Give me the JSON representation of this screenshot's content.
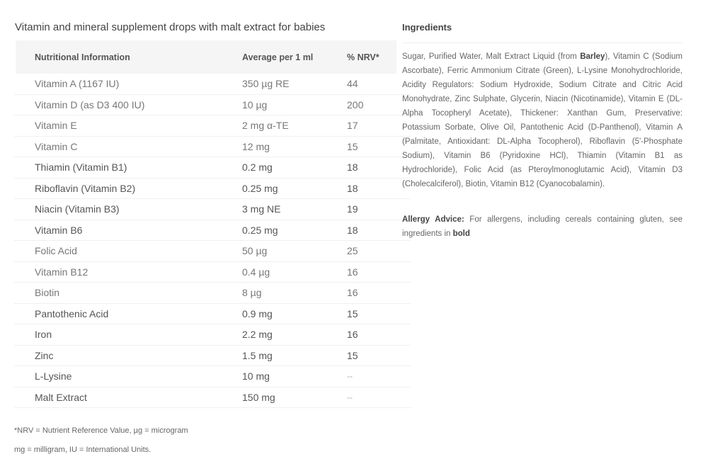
{
  "title": "Vitamin and mineral supplement drops with malt extract for babies",
  "table": {
    "headers": [
      "Nutritional Information",
      "Average per 1 ml",
      "% NRV*"
    ],
    "rows": [
      {
        "name": "Vitamin A (1167 IU)",
        "amount": "350 µg RE",
        "nrv": "44"
      },
      {
        "name": "Vitamin D (as D3 400 IU)",
        "amount": "10 µg",
        "nrv": "200"
      },
      {
        "name": "Vitamin E",
        "amount": "2 mg α-TE",
        "nrv": "17"
      },
      {
        "name": "Vitamin C",
        "amount": "12 mg",
        "nrv": "15"
      },
      {
        "name": "Thiamin (Vitamin B1)",
        "amount": "0.2 mg",
        "nrv": "18"
      },
      {
        "name": "Riboflavin (Vitamin B2)",
        "amount": "0.25 mg",
        "nrv": "18"
      },
      {
        "name": "Niacin (Vitamin B3)",
        "amount": "3 mg NE",
        "nrv": "19"
      },
      {
        "name": "Vitamin B6",
        "amount": "0.25 mg",
        "nrv": "18"
      },
      {
        "name": "Folic Acid",
        "amount": "50 µg",
        "nrv": "25"
      },
      {
        "name": "Vitamin B12",
        "amount": "0.4 µg",
        "nrv": "16"
      },
      {
        "name": "Biotin",
        "amount": "8 µg",
        "nrv": "16"
      },
      {
        "name": "Pantothenic Acid",
        "amount": "0.9 mg",
        "nrv": "15"
      },
      {
        "name": "Iron",
        "amount": "2.2 mg",
        "nrv": "16"
      },
      {
        "name": "Zinc",
        "amount": "1.5 mg",
        "nrv": "15"
      },
      {
        "name": "L-Lysine",
        "amount": "10 mg",
        "nrv": "--"
      },
      {
        "name": "Malt Extract",
        "amount": "150 mg",
        "nrv": "--"
      }
    ]
  },
  "notes": [
    "*NRV = Nutrient Reference Value, µg = microgram",
    "mg = milligram, IU = International Units."
  ],
  "ingredients": {
    "title": "Ingredients",
    "text_before": "Sugar, Purified Water, Malt Extract Liquid (from ",
    "bold": "Barley",
    "text_after": "), Vitamin C (Sodium Ascorbate), Ferric Ammonium Citrate (Green), L-Lysine Monohydrochloride, Acidity Regulators: Sodium Hydroxide, Sodium Citrate and Citric Acid Monohydrate, Zinc Sulphate, Glycerin, Niacin (Nicotinamide), Vitamin E (DL-Alpha Tocopheryl Acetate), Thickener: Xanthan Gum, Preservative: Potassium Sorbate, Olive Oil, Pantothenic Acid (D-Panthenol), Vitamin A (Palmitate, Antioxidant: DL-Alpha Tocopherol), Riboflavin (5'-Phosphate Sodium), Vitamin B6 (Pyridoxine HCl), Thiamin (Vitamin B1 as Hydrochloride), Folic Acid (as Pteroylmonoglutamic Acid), Vitamin D3 (Cholecalciferol), Biotin, Vitamin B12 (Cyanocobalamin).",
    "allergy_label": "Allergy Advice:",
    "allergy_text": " For allergens, including cereals containing gluten, see ingredients in ",
    "allergy_bold": "bold"
  }
}
